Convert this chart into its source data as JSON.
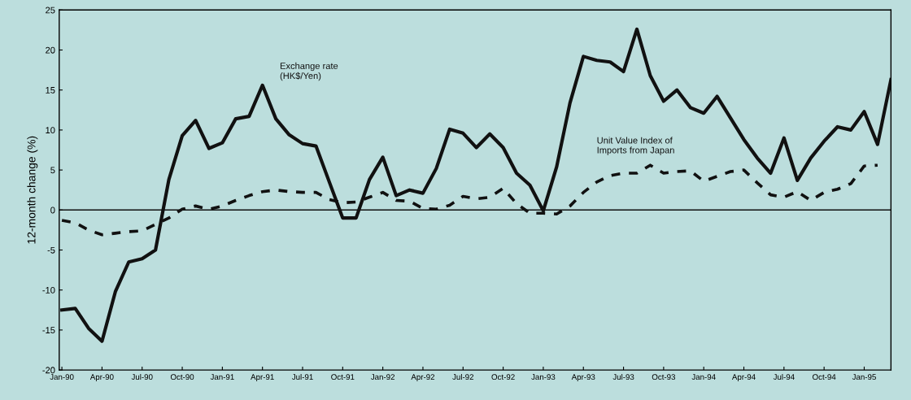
{
  "chart_data": {
    "type": "line",
    "ylabel": "12-month change (%)",
    "categories": [
      "Jan-90",
      null,
      null,
      "Apr-90",
      null,
      null,
      "Jul-90",
      null,
      null,
      "Oct-90",
      null,
      null,
      "Jan-91",
      null,
      null,
      "Apr-91",
      null,
      null,
      "Jul-91",
      null,
      null,
      "Oct-91",
      null,
      null,
      "Jan-92",
      null,
      null,
      "Apr-92",
      null,
      null,
      "Jul-92",
      null,
      null,
      "Oct-92",
      null,
      null,
      "Jan-93",
      null,
      null,
      "Apr-93",
      null,
      null,
      "Jul-93",
      null,
      null,
      "Oct-93",
      null,
      null,
      "Jan-94",
      null,
      null,
      "Apr-94",
      null,
      null,
      "Jul-94",
      null,
      null,
      "Oct-94",
      null,
      null,
      "Jan-95",
      null,
      null
    ],
    "series": [
      {
        "name": "Exchange rate\n(HK$/Yen)",
        "color": "#111111",
        "line_style": "solid",
        "values": [
          -12.5,
          -12.3,
          -14.8,
          -16.4,
          -10.2,
          -6.5,
          -6.1,
          -5.0,
          3.8,
          9.3,
          11.2,
          7.7,
          8.4,
          11.4,
          11.7,
          15.6,
          11.4,
          9.4,
          8.3,
          8.0,
          3.5,
          -1.0,
          -1.0,
          3.8,
          6.6,
          1.8,
          2.5,
          2.1,
          5.2,
          10.1,
          9.6,
          7.8,
          9.5,
          7.8,
          4.6,
          3.1,
          -0.1,
          5.4,
          13.4,
          19.2,
          18.7,
          18.5,
          17.3,
          22.6,
          16.8,
          13.6,
          15.0,
          12.8,
          12.1,
          14.2,
          11.5,
          8.8,
          6.5,
          4.6,
          9.0,
          3.7,
          6.5,
          8.6,
          10.4,
          10.0,
          12.3,
          8.2,
          16.3
        ]
      },
      {
        "name": "Unit Value Index of\nImports from Japan",
        "color": "#111111",
        "line_style": "dashed",
        "values": [
          -1.3,
          -1.6,
          -2.5,
          -3.1,
          -2.9,
          -2.7,
          -2.6,
          -1.8,
          -1.0,
          0.1,
          0.5,
          0.1,
          0.5,
          1.2,
          1.8,
          2.3,
          2.5,
          2.3,
          2.2,
          2.2,
          1.3,
          0.9,
          1.0,
          1.6,
          2.2,
          1.2,
          1.1,
          0.2,
          0.1,
          0.6,
          1.7,
          1.4,
          1.6,
          2.7,
          0.8,
          -0.4,
          -0.4,
          -0.5,
          0.5,
          2.2,
          3.5,
          4.3,
          4.6,
          4.6,
          5.6,
          4.6,
          4.8,
          4.9,
          3.6,
          4.2,
          4.8,
          5.0,
          3.4,
          1.9,
          1.6,
          2.3,
          1.2,
          2.2,
          2.6,
          3.3,
          5.5,
          5.6,
          null
        ]
      }
    ],
    "ylim": [
      -20,
      25
    ],
    "yticks": [
      -20,
      -15,
      -10,
      -5,
      0,
      5,
      10,
      15,
      20,
      25
    ],
    "ref_lines": [
      {
        "axis": "y",
        "value": 0,
        "color": "#111111"
      }
    ],
    "grid": false,
    "legend": false,
    "marker": "none"
  }
}
